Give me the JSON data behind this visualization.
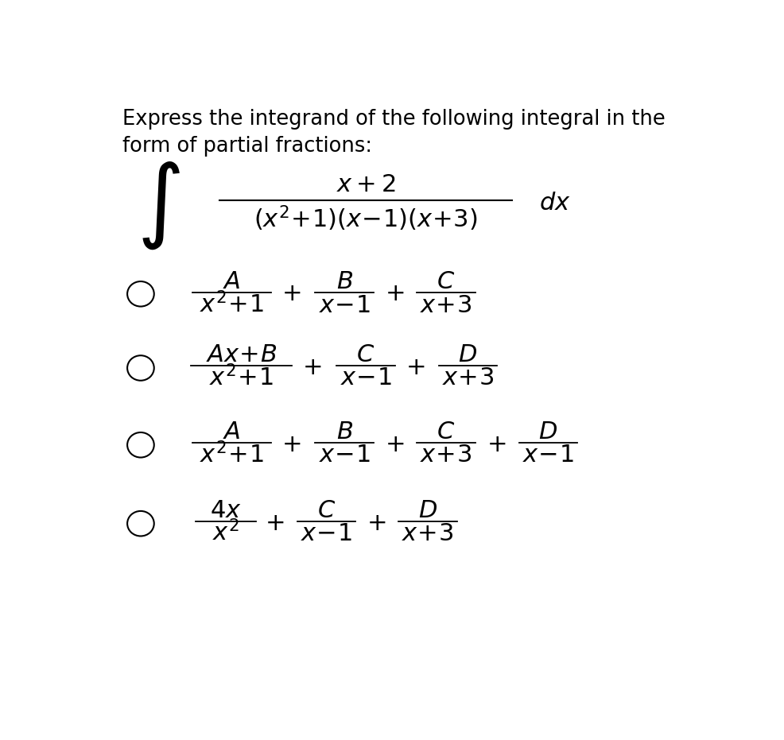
{
  "background_color": "#ffffff",
  "text_color": "#000000",
  "title_line1": "Express the integrand of the following integral in the",
  "title_line2": "form of partial fractions:",
  "figsize": [
    9.87,
    9.31
  ],
  "dpi": 100
}
